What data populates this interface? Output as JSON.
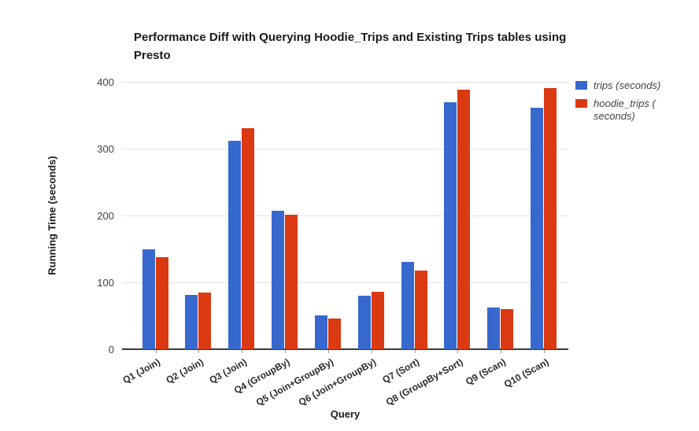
{
  "chart_data": {
    "type": "bar",
    "title": "Performance Diff with Querying Hoodie_Trips and Existing Trips tables using Presto",
    "xlabel": "Query",
    "ylabel": "Running Time (seconds)",
    "ylim": [
      0,
      400
    ],
    "yticks": [
      0,
      100,
      200,
      300,
      400
    ],
    "grid": true,
    "legend_position": "right",
    "categories": [
      "Q1 (Join)",
      "Q2 (Join)",
      "Q3 (Join)",
      "Q4 (GroupBy)",
      "Q5 (Join+GroupBy)",
      "Q6 (Join+GroupBy)",
      "Q7 (Sort)",
      "Q8 (GroupBy+Sort)",
      "Q9 (Scan)",
      "Q10 (Scan)"
    ],
    "series": [
      {
        "key": "trips",
        "name": "trips (seconds)",
        "legend_lines": [
          "trips (seconds)"
        ],
        "color": "#3768CE",
        "values": [
          150,
          81,
          312,
          207,
          51,
          80,
          131,
          369,
          62,
          361
        ]
      },
      {
        "key": "hoodie_trips",
        "name": "hoodie_trips (seconds)",
        "legend_lines": [
          "hoodie_trips (",
          "seconds)"
        ],
        "color": "#DB3912",
        "values": [
          138,
          85,
          331,
          201,
          46,
          86,
          118,
          388,
          60,
          391
        ]
      }
    ],
    "colors": {
      "gridline": "#e3e3e3",
      "axis_line": "#3a3a3a",
      "tick_text": "#424242",
      "title_text": "#1a1a1a",
      "background": "#ffffff"
    }
  }
}
